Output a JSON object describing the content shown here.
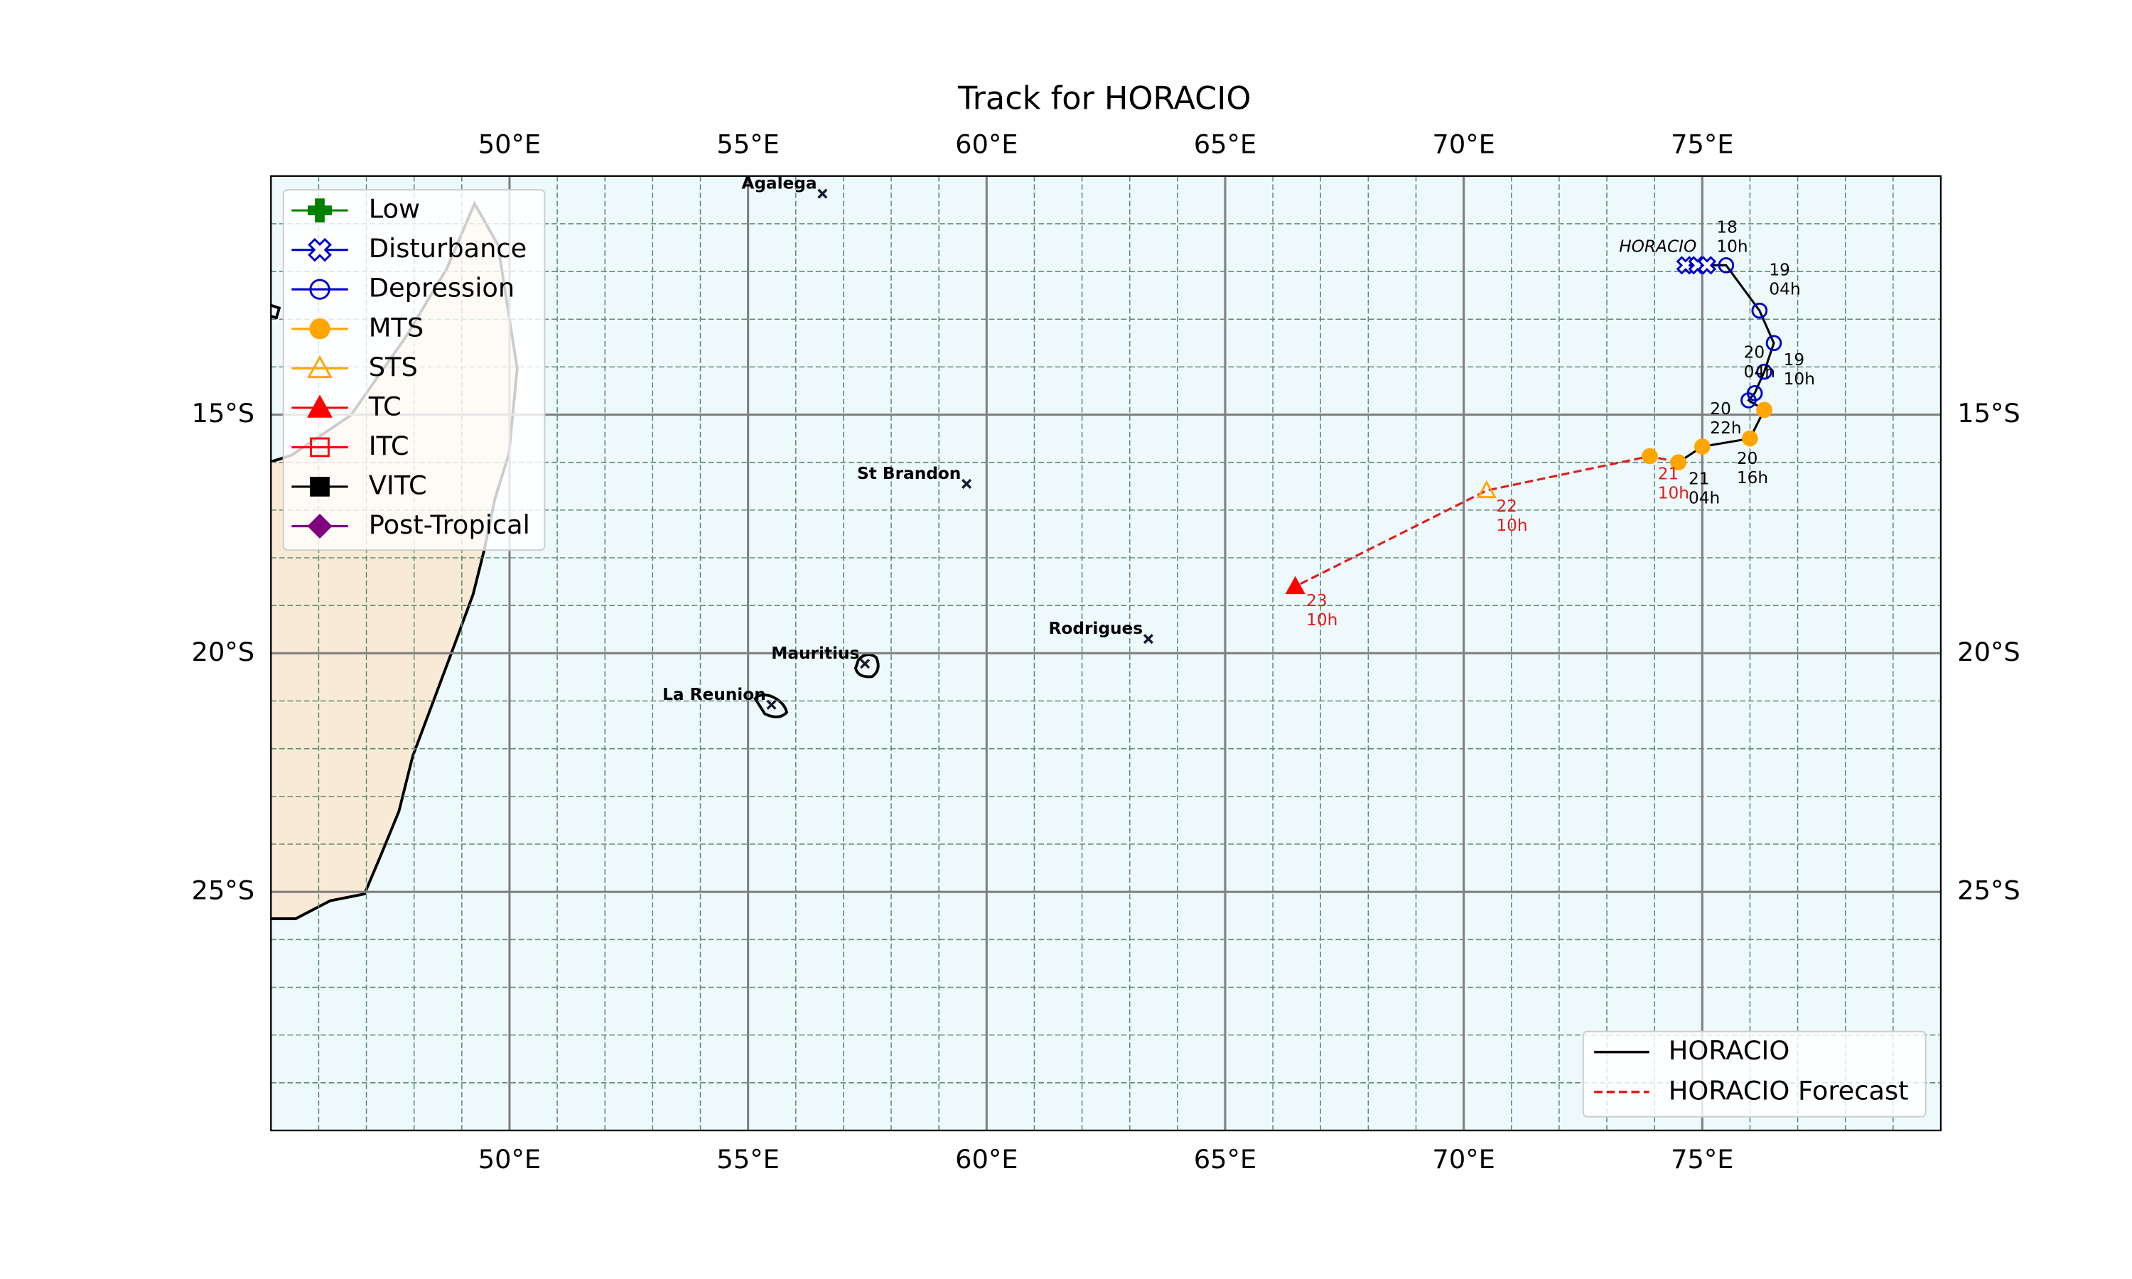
{
  "chart_data": {
    "type": "track",
    "title": "Track for HORACIO",
    "xlim": [
      45,
      80
    ],
    "ylim": [
      -30,
      -10
    ],
    "xticks": [
      {
        "value": 50,
        "label": "50°E"
      },
      {
        "value": 55,
        "label": "55°E"
      },
      {
        "value": 60,
        "label": "60°E"
      },
      {
        "value": 65,
        "label": "65°E"
      },
      {
        "value": 70,
        "label": "70°E"
      },
      {
        "value": 75,
        "label": "75°E"
      }
    ],
    "yticks": [
      {
        "value": -15,
        "label": "15°S"
      },
      {
        "value": -20,
        "label": "20°S"
      },
      {
        "value": -25,
        "label": "25°S"
      }
    ],
    "grid": true,
    "minor_grid": true,
    "ocean_color": "#eef9fc",
    "land_color": "#f9ead6",
    "storm_label": "HORACIO",
    "stages": [
      {
        "name": "Low",
        "color": "#008000",
        "marker": "plus",
        "filled": true
      },
      {
        "name": "Disturbance",
        "color": "#0000cc",
        "marker": "x",
        "filled": false
      },
      {
        "name": "Depression",
        "color": "#0000cc",
        "marker": "circle",
        "filled": false
      },
      {
        "name": "MTS",
        "color": "#ffa500",
        "marker": "circle",
        "filled": true
      },
      {
        "name": "STS",
        "color": "#ffa500",
        "marker": "triangle",
        "filled": false
      },
      {
        "name": "TC",
        "color": "#ff0000",
        "marker": "triangle",
        "filled": true
      },
      {
        "name": "ITC",
        "color": "#ff0000",
        "marker": "square",
        "filled": false
      },
      {
        "name": "VITC",
        "color": "#000000",
        "marker": "square",
        "filled": true
      },
      {
        "name": "Post-Tropical",
        "color": "#800080",
        "marker": "diamond",
        "filled": true
      }
    ],
    "series": [
      {
        "name": "HORACIO",
        "color": "#000000",
        "dashed": false,
        "x": [
          74.65,
          74.9,
          75.1,
          75.5,
          76.2,
          76.5,
          76.3,
          76.1,
          75.97,
          76.3,
          76.0,
          75.0,
          74.5
        ],
        "values": [
          -11.87,
          -11.87,
          -11.87,
          -11.87,
          -12.82,
          -13.5,
          -14.1,
          -14.55,
          -14.7,
          -14.9,
          -15.5,
          -15.67,
          -16.0
        ],
        "stages": [
          "Disturbance",
          "Disturbance",
          "Disturbance",
          "Depression",
          "Depression",
          "Depression",
          "Depression",
          "Depression",
          "Depression",
          "MTS",
          "MTS",
          "MTS",
          "MTS"
        ],
        "labels": [
          null,
          null,
          null,
          [
            "18",
            "10h"
          ],
          [
            "19",
            "04h"
          ],
          null,
          [
            "19",
            "10h"
          ],
          [
            "20",
            "04h"
          ],
          null,
          [
            "20",
            "16h"
          ],
          [
            "20",
            "22h"
          ],
          [
            "21",
            "04h"
          ],
          null
        ]
      },
      {
        "name": "HORACIO Forecast",
        "color": "#e31a1c",
        "dashed": true,
        "x": [
          74.5,
          73.9,
          70.48,
          66.47
        ],
        "values": [
          -16.0,
          -15.87,
          -16.59,
          -18.6
        ],
        "stages": [
          "MTS",
          "MTS",
          "STS",
          "TC"
        ],
        "labels": [
          [
            "21",
            "10h"
          ],
          null,
          [
            "22",
            "10h"
          ],
          [
            "23",
            "10h"
          ]
        ]
      }
    ],
    "places": [
      {
        "name": "Agalega",
        "lon": 56.56,
        "lat": -10.37
      },
      {
        "name": "St Brandon",
        "lon": 59.58,
        "lat": -16.45
      },
      {
        "name": "Rodrigues",
        "lon": 63.39,
        "lat": -19.7
      },
      {
        "name": "Mauritius",
        "lon": 57.45,
        "lat": -20.22
      },
      {
        "name": "La Reunion",
        "lon": 55.49,
        "lat": -21.08
      }
    ]
  }
}
